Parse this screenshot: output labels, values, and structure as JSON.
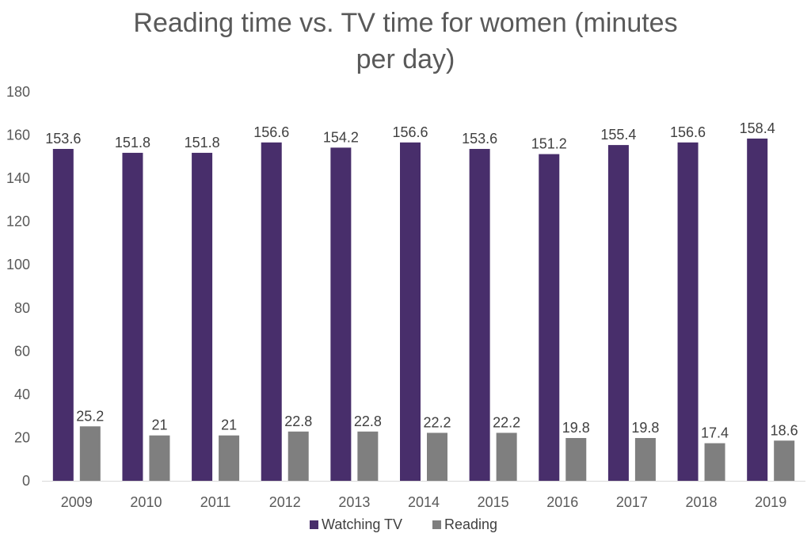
{
  "chart_data": {
    "type": "bar",
    "title_lines": [
      "Reading time vs. TV time for women (minutes",
      "per day)"
    ],
    "categories": [
      "2009",
      "2010",
      "2011",
      "2012",
      "2013",
      "2014",
      "2015",
      "2016",
      "2017",
      "2018",
      "2019"
    ],
    "series": [
      {
        "name": "Watching TV",
        "color": "#482e6b",
        "values": [
          153.6,
          151.8,
          151.8,
          156.6,
          154.2,
          156.6,
          153.6,
          151.2,
          155.4,
          156.6,
          158.4
        ]
      },
      {
        "name": "Reading",
        "color": "#7f7f7f",
        "values": [
          25.2,
          21,
          21,
          22.8,
          22.8,
          22.2,
          22.2,
          19.8,
          19.8,
          17.4,
          18.6
        ]
      }
    ],
    "ylim": [
      0,
      180
    ],
    "yticks": [
      0,
      20,
      40,
      60,
      80,
      100,
      120,
      140,
      160,
      180
    ],
    "grid": false,
    "legend_position": "bottom"
  }
}
